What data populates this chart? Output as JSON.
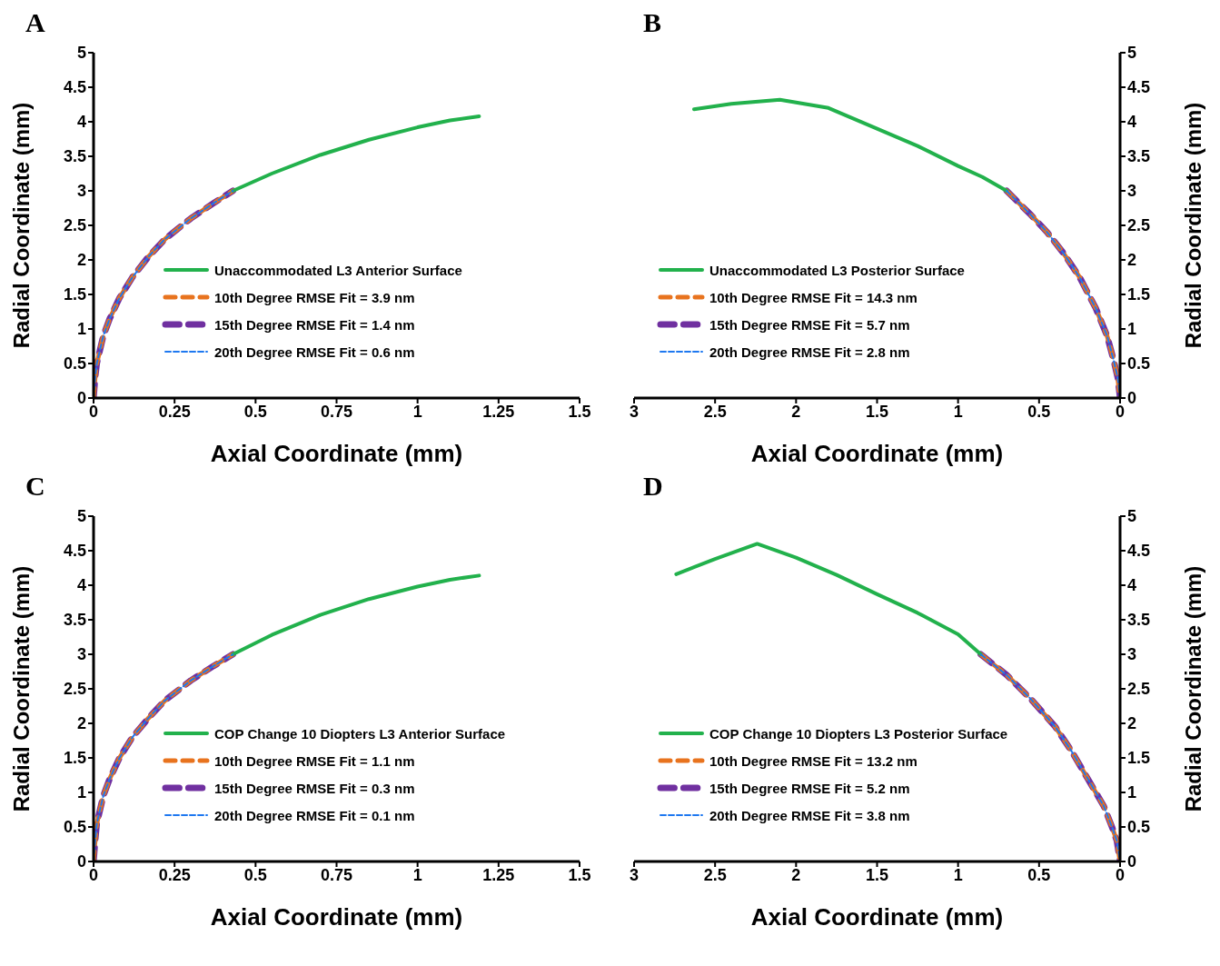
{
  "chart_data": [
    {
      "type": "line",
      "title": "A",
      "xlabel": "Axial Coordinate (mm)",
      "ylabel": "Radial Coordinate (mm)",
      "xlim": [
        0,
        1.5
      ],
      "xticks": [
        0,
        0.25,
        0.5,
        0.75,
        1,
        1.25,
        1.5
      ],
      "ylim": [
        0,
        5
      ],
      "yticks": [
        0,
        0.5,
        1,
        1.5,
        2,
        2.5,
        3,
        3.5,
        4,
        4.5,
        5
      ],
      "legend": "bottom right",
      "marker": "none",
      "series": [
        {
          "name": "Unaccommodated L3 Anterior Surface",
          "color": "#22b14c",
          "line_style": "solid",
          "x": [
            0.43,
            0.55,
            0.7,
            0.85,
            1.0,
            1.1,
            1.19
          ],
          "values": [
            3.0,
            3.25,
            3.52,
            3.74,
            3.92,
            4.02,
            4.08
          ]
        },
        {
          "name": "10th Degree RMSE Fit = 3.9 nm",
          "color": "#e8731e",
          "line_style": "dashed",
          "x": [
            0,
            0.005,
            0.01,
            0.03,
            0.05,
            0.08,
            0.12,
            0.17,
            0.22,
            0.3,
            0.37,
            0.43
          ],
          "values": [
            0,
            0.3,
            0.5,
            0.9,
            1.15,
            1.45,
            1.75,
            2.05,
            2.3,
            2.6,
            2.82,
            3.0
          ]
        },
        {
          "name": "15th Degree RMSE Fit = 1.4 nm",
          "color": "#7030a0",
          "line_style": "dashed",
          "x": [
            0,
            0.005,
            0.01,
            0.03,
            0.05,
            0.08,
            0.12,
            0.17,
            0.22,
            0.3,
            0.37,
            0.43
          ],
          "values": [
            0,
            0.3,
            0.5,
            0.9,
            1.15,
            1.45,
            1.75,
            2.05,
            2.3,
            2.6,
            2.82,
            3.0
          ]
        },
        {
          "name": "20th Degree RMSE Fit = 0.6 nm",
          "color": "#1e78f0",
          "line_style": "dashed",
          "x": [
            0,
            0.005,
            0.01,
            0.03,
            0.05,
            0.08,
            0.12,
            0.17,
            0.22,
            0.3,
            0.37,
            0.43
          ],
          "values": [
            0,
            0.3,
            0.5,
            0.9,
            1.15,
            1.45,
            1.75,
            2.05,
            2.3,
            2.6,
            2.82,
            3.0
          ]
        }
      ]
    },
    {
      "type": "line",
      "title": "B",
      "xlabel": "Axial Coordinate (mm)",
      "y2label": "Radial Coordinate (mm)",
      "xlim": [
        3,
        0
      ],
      "xticks": [
        3,
        2.5,
        2,
        1.5,
        1,
        0.5,
        0
      ],
      "y2lim": [
        0,
        5
      ],
      "y2ticks": [
        0,
        0.5,
        1,
        1.5,
        2,
        2.5,
        3,
        3.5,
        4,
        4.5,
        5
      ],
      "legend": "bottom left",
      "marker": "none",
      "series": [
        {
          "name": "Unaccommodated L3 Posterior Surface",
          "color": "#22b14c",
          "line_style": "solid",
          "axis": "y2",
          "x": [
            2.63,
            2.4,
            2.1,
            1.8,
            1.5,
            1.25,
            1.0,
            0.85,
            0.7
          ],
          "values": [
            4.18,
            4.26,
            4.32,
            4.2,
            3.9,
            3.65,
            3.36,
            3.2,
            3.0
          ]
        },
        {
          "name": "10th Degree RMSE Fit = 14.3 nm",
          "color": "#e8731e",
          "line_style": "dashed",
          "axis": "y2",
          "x": [
            0.7,
            0.55,
            0.45,
            0.35,
            0.25,
            0.15,
            0.08,
            0.04,
            0.015,
            0
          ],
          "values": [
            3.0,
            2.65,
            2.4,
            2.1,
            1.75,
            1.3,
            0.9,
            0.55,
            0.3,
            0
          ]
        },
        {
          "name": "15th Degree RMSE Fit = 5.7 nm",
          "color": "#7030a0",
          "line_style": "dashed",
          "axis": "y2",
          "x": [
            0.7,
            0.55,
            0.45,
            0.35,
            0.25,
            0.15,
            0.08,
            0.04,
            0.015,
            0
          ],
          "values": [
            3.0,
            2.65,
            2.4,
            2.1,
            1.75,
            1.3,
            0.9,
            0.55,
            0.3,
            0
          ]
        },
        {
          "name": "20th Degree RMSE Fit = 2.8 nm",
          "color": "#1e78f0",
          "line_style": "dashed",
          "axis": "y2",
          "x": [
            0.7,
            0.55,
            0.45,
            0.35,
            0.25,
            0.15,
            0.08,
            0.04,
            0.015,
            0
          ],
          "values": [
            3.0,
            2.65,
            2.4,
            2.1,
            1.75,
            1.3,
            0.9,
            0.55,
            0.3,
            0
          ]
        }
      ]
    },
    {
      "type": "line",
      "title": "C",
      "xlabel": "Axial Coordinate (mm)",
      "ylabel": "Radial Coordinate (mm)",
      "xlim": [
        0,
        1.5
      ],
      "xticks": [
        0,
        0.25,
        0.5,
        0.75,
        1,
        1.25,
        1.5
      ],
      "ylim": [
        0,
        5
      ],
      "yticks": [
        0,
        0.5,
        1,
        1.5,
        2,
        2.5,
        3,
        3.5,
        4,
        4.5,
        5
      ],
      "legend": "bottom right",
      "marker": "none",
      "series": [
        {
          "name": "COP Change 10 Diopters L3 Anterior Surface",
          "color": "#22b14c",
          "line_style": "solid",
          "x": [
            0.43,
            0.55,
            0.7,
            0.85,
            1.0,
            1.1,
            1.19
          ],
          "values": [
            3.0,
            3.28,
            3.57,
            3.8,
            3.98,
            4.08,
            4.14
          ]
        },
        {
          "name": "10th Degree RMSE Fit = 1.1 nm",
          "color": "#e8731e",
          "line_style": "dashed",
          "x": [
            0,
            0.005,
            0.01,
            0.03,
            0.05,
            0.08,
            0.12,
            0.17,
            0.22,
            0.3,
            0.37,
            0.43
          ],
          "values": [
            0,
            0.3,
            0.55,
            0.95,
            1.2,
            1.5,
            1.8,
            2.08,
            2.33,
            2.62,
            2.83,
            3.0
          ]
        },
        {
          "name": "15th Degree RMSE Fit = 0.3 nm",
          "color": "#7030a0",
          "line_style": "dashed",
          "x": [
            0,
            0.005,
            0.01,
            0.03,
            0.05,
            0.08,
            0.12,
            0.17,
            0.22,
            0.3,
            0.37,
            0.43
          ],
          "values": [
            0,
            0.3,
            0.55,
            0.95,
            1.2,
            1.5,
            1.8,
            2.08,
            2.33,
            2.62,
            2.83,
            3.0
          ]
        },
        {
          "name": "20th Degree RMSE Fit = 0.1 nm",
          "color": "#1e78f0",
          "line_style": "dashed",
          "x": [
            0,
            0.005,
            0.01,
            0.03,
            0.05,
            0.08,
            0.12,
            0.17,
            0.22,
            0.3,
            0.37,
            0.43
          ],
          "values": [
            0,
            0.3,
            0.55,
            0.95,
            1.2,
            1.5,
            1.8,
            2.08,
            2.33,
            2.62,
            2.83,
            3.0
          ]
        }
      ]
    },
    {
      "type": "line",
      "title": "D",
      "xlabel": "Axial Coordinate (mm)",
      "y2label": "Radial Coordinate (mm)",
      "xlim": [
        3,
        0
      ],
      "xticks": [
        3,
        2.5,
        2,
        1.5,
        1,
        0.5,
        0
      ],
      "y2lim": [
        0,
        5
      ],
      "y2ticks": [
        0,
        0.5,
        1,
        1.5,
        2,
        2.5,
        3,
        3.5,
        4,
        4.5,
        5
      ],
      "legend": "bottom left",
      "marker": "none",
      "series": [
        {
          "name": "COP Change 10 Diopters L3 Posterior Surface",
          "color": "#22b14c",
          "line_style": "solid",
          "axis": "y2",
          "x": [
            2.74,
            2.5,
            2.24,
            2.0,
            1.75,
            1.5,
            1.25,
            1.0,
            0.86
          ],
          "values": [
            4.16,
            4.38,
            4.6,
            4.4,
            4.15,
            3.87,
            3.6,
            3.29,
            3.0
          ]
        },
        {
          "name": "10th Degree RMSE Fit = 13.2 nm",
          "color": "#e8731e",
          "line_style": "dashed",
          "axis": "y2",
          "x": [
            0.86,
            0.7,
            0.55,
            0.4,
            0.3,
            0.2,
            0.1,
            0.05,
            0.02,
            0
          ],
          "values": [
            3.0,
            2.7,
            2.35,
            1.95,
            1.6,
            1.2,
            0.8,
            0.5,
            0.3,
            0
          ]
        },
        {
          "name": "15th Degree RMSE Fit = 5.2 nm",
          "color": "#7030a0",
          "line_style": "dashed",
          "axis": "y2",
          "x": [
            0.86,
            0.7,
            0.55,
            0.4,
            0.3,
            0.2,
            0.1,
            0.05,
            0.02,
            0
          ],
          "values": [
            3.0,
            2.7,
            2.35,
            1.95,
            1.6,
            1.2,
            0.8,
            0.5,
            0.3,
            0
          ]
        },
        {
          "name": "20th Degree RMSE Fit = 3.8 nm",
          "color": "#1e78f0",
          "line_style": "dashed",
          "axis": "y2",
          "x": [
            0.86,
            0.7,
            0.55,
            0.4,
            0.3,
            0.2,
            0.1,
            0.05,
            0.02,
            0
          ],
          "values": [
            3.0,
            2.7,
            2.35,
            1.95,
            1.6,
            1.2,
            0.8,
            0.5,
            0.3,
            0
          ]
        }
      ]
    }
  ]
}
